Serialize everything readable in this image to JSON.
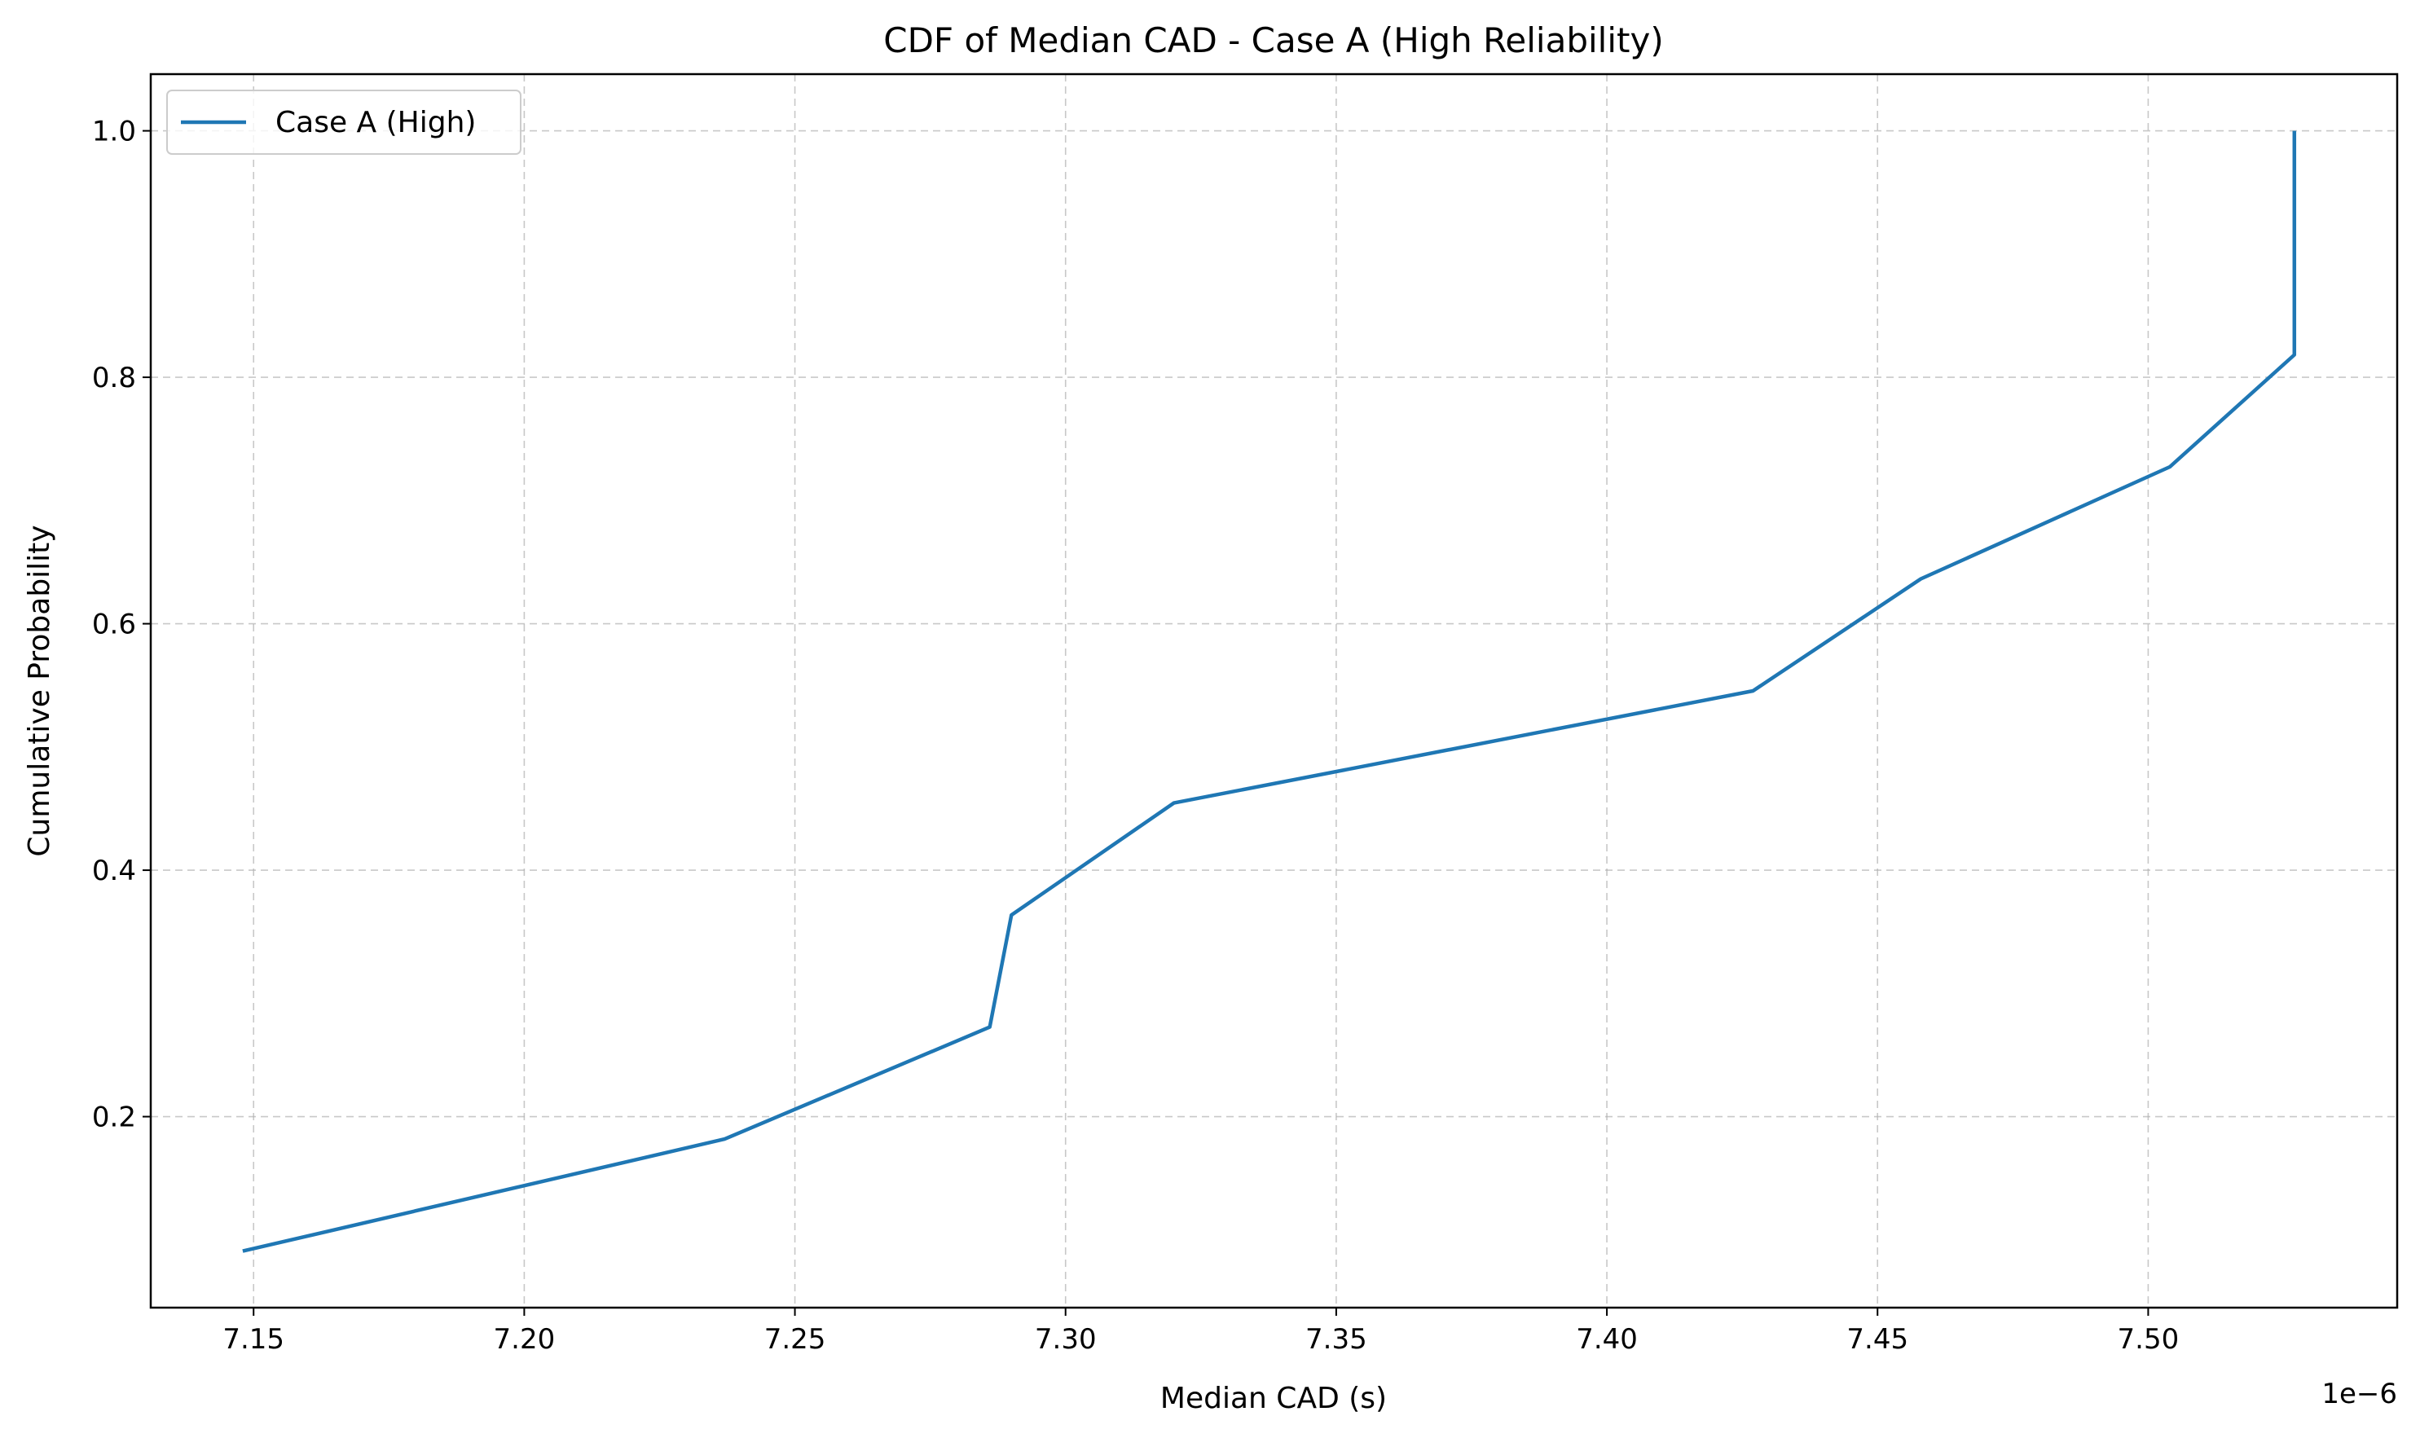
{
  "chart_data": {
    "type": "line",
    "title": "CDF of Median CAD - Case A (High Reliability)",
    "xlabel": "Median CAD (s)",
    "ylabel": "Cumulative Probability",
    "x_offset_label": "1e−6",
    "x_scale_factor": 1e-06,
    "xlim": [
      7.131,
      7.546
    ],
    "ylim": [
      0.045,
      1.046
    ],
    "x_ticks": [
      7.15,
      7.2,
      7.25,
      7.3,
      7.35,
      7.4,
      7.45,
      7.5
    ],
    "x_tick_labels": [
      "7.15",
      "7.20",
      "7.25",
      "7.30",
      "7.35",
      "7.40",
      "7.45",
      "7.50"
    ],
    "y_ticks": [
      0.2,
      0.4,
      0.6,
      0.8,
      1.0
    ],
    "y_tick_labels": [
      "0.2",
      "0.4",
      "0.6",
      "0.8",
      "1.0"
    ],
    "grid": true,
    "legend_position": "top-left",
    "series": [
      {
        "name": "Case A (High)",
        "color": "#1f77b4",
        "x": [
          7.148,
          7.237,
          7.286,
          7.29,
          7.32,
          7.427,
          7.458,
          7.504,
          7.527,
          7.527
        ],
        "y": [
          0.0909,
          0.1818,
          0.2727,
          0.3636,
          0.4545,
          0.5455,
          0.6364,
          0.7273,
          0.8182,
          1.0
        ]
      }
    ]
  }
}
